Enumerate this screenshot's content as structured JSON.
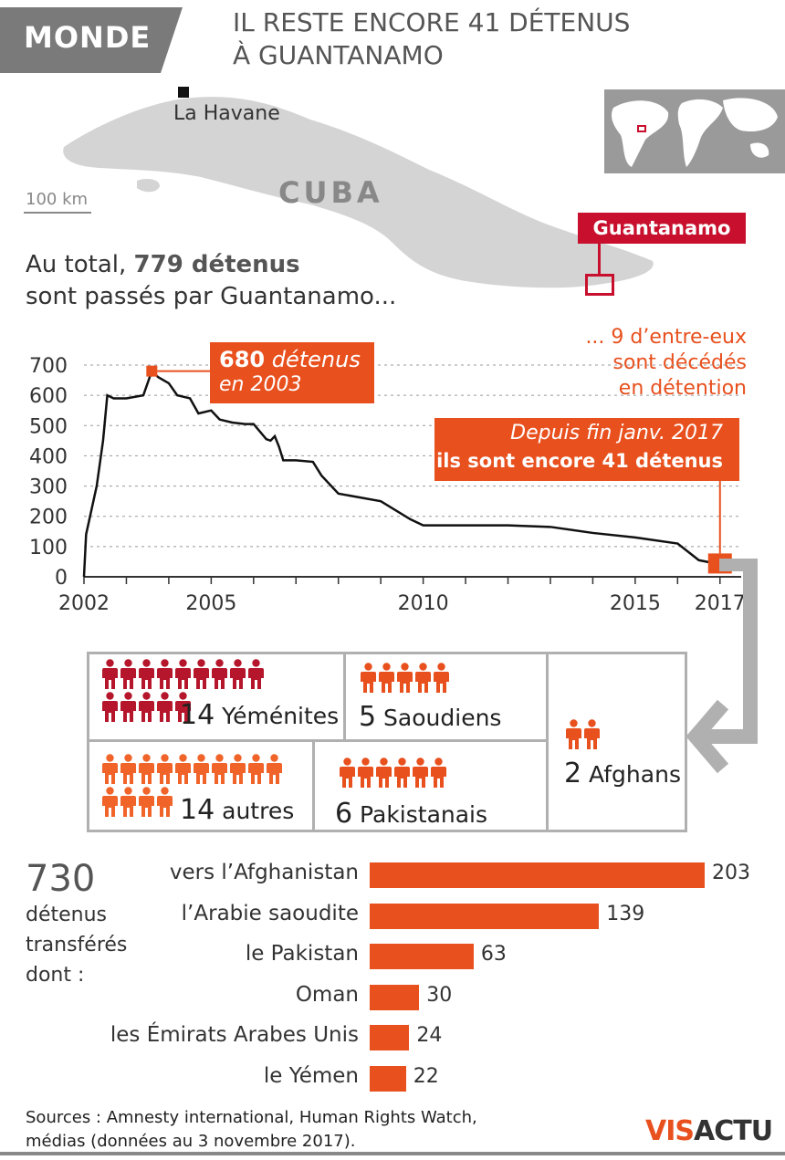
{
  "header": {
    "tag": "MONDE",
    "title_line1": "IL RESTE ENCORE 41 DÉTENUS",
    "title_line2": "À GUANTANAMO"
  },
  "map": {
    "city": "La Havane",
    "scale": "100 km",
    "country": "CUBA",
    "marker": "Guantanamo"
  },
  "intro": {
    "line1_prefix": "Au total, ",
    "line1_bold": "779 détenus",
    "line2": "sont passés par Guantanamo..."
  },
  "deaths_note": [
    "... 9 d’entre-eux",
    "sont décédés",
    "en détention"
  ],
  "callout_peak": {
    "number": "680",
    "text": " détenus",
    "line2": "en 2003"
  },
  "callout_now": {
    "line1": "Depuis fin janv. 2017",
    "line2": "ils sont encore 41 détenus"
  },
  "chart_data": [
    {
      "type": "line",
      "x": [
        2002.0,
        2002.05,
        2002.3,
        2002.45,
        2002.55,
        2002.7,
        2003.0,
        2003.4,
        2003.6,
        2003.75,
        2004.0,
        2004.2,
        2004.5,
        2004.7,
        2005.0,
        2005.2,
        2005.5,
        2005.8,
        2006.0,
        2006.3,
        2006.4,
        2006.5,
        2006.6,
        2006.7,
        2007.0,
        2007.4,
        2007.6,
        2008.0,
        2009.0,
        2009.7,
        2010.0,
        2011.0,
        2012.0,
        2013.0,
        2014.0,
        2015.0,
        2016.0,
        2016.5,
        2017.0
      ],
      "y": [
        0,
        140,
        300,
        450,
        600,
        590,
        590,
        600,
        680,
        660,
        640,
        600,
        590,
        540,
        550,
        520,
        510,
        505,
        505,
        455,
        450,
        465,
        430,
        385,
        385,
        380,
        335,
        275,
        250,
        190,
        170,
        170,
        170,
        165,
        145,
        130,
        110,
        55,
        41
      ],
      "xticks": [
        "2002",
        "2005",
        "2010",
        "2015",
        "2017"
      ],
      "yticks": [
        "0",
        "100",
        "200",
        "300",
        "400",
        "500",
        "600",
        "700"
      ],
      "xlim": [
        2002,
        2017.5
      ],
      "ylim": [
        0,
        700
      ],
      "color": "#111111",
      "marker_color": "#e8501e"
    },
    {
      "type": "bar",
      "title": "730",
      "categories": [
        "vers l’Afghanistan",
        "l’Arabie saoudite",
        "le Pakistan",
        "Oman",
        "les Émirats Arabes Unis",
        "le Yémen"
      ],
      "values": [
        203,
        139,
        63,
        30,
        24,
        22
      ],
      "color": "#e8501e"
    }
  ],
  "transfer": {
    "big": "730",
    "sub": [
      "détenus",
      "transférés",
      "dont :"
    ]
  },
  "nationalities": [
    {
      "count": "14",
      "label": "Yéménites",
      "color": "#b5162b",
      "icons": 14
    },
    {
      "count": "5",
      "label": "Saoudiens",
      "color": "#e8501e",
      "icons": 5
    },
    {
      "count": "2",
      "label": "Afghans",
      "color": "#e8501e",
      "icons": 2
    },
    {
      "count": "14",
      "label": "autres",
      "color": "#f0642a",
      "icons": 14
    },
    {
      "count": "6",
      "label": "Pakistanais",
      "color": "#e8501e",
      "icons": 6
    }
  ],
  "sources": [
    "Sources : Amnesty international, Human Rights Watch,",
    "médias (données au 3 novembre 2017)."
  ],
  "logo": {
    "a": "VIS",
    "b": "ACTU"
  }
}
